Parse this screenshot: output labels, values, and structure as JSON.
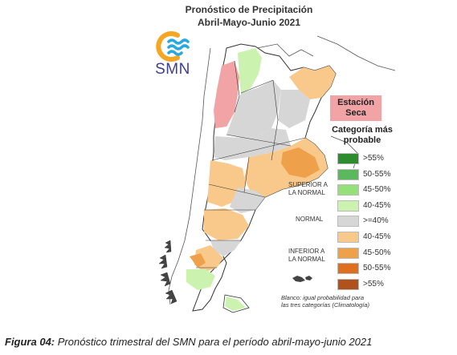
{
  "title": {
    "line1": "Pronóstico de Precipitación",
    "line2": "Abril-Mayo-Junio 2021"
  },
  "logo": {
    "text": "SMN",
    "icon": "smn-sun-waves-logo",
    "colors": {
      "sun": "#f5a623",
      "waves": "#2aa8e0"
    }
  },
  "dry_station": {
    "line1": "Estación",
    "line2": "Seca",
    "color": "#f1a3a6"
  },
  "legend": {
    "title_line1": "Categoría más",
    "title_line2": "probable",
    "items": [
      {
        "label": ">55%",
        "color": "#2e8b2e",
        "group": "superior"
      },
      {
        "label": "50-55%",
        "color": "#5cb85c",
        "group": "superior"
      },
      {
        "label": "45-50%",
        "color": "#96e07a",
        "group": "superior"
      },
      {
        "label": "40-45%",
        "color": "#ccf2b0",
        "group": "superior"
      },
      {
        "label": ">=40%",
        "color": "#d6d6d6",
        "group": "normal"
      },
      {
        "label": "40-45%",
        "color": "#f8c98a",
        "group": "inferior"
      },
      {
        "label": "45-50%",
        "color": "#eea14a",
        "group": "inferior"
      },
      {
        "label": "50-55%",
        "color": "#dd6f1f",
        "group": "inferior"
      },
      {
        "label": ">55%",
        "color": "#b0521c",
        "group": "inferior"
      }
    ],
    "groups": {
      "superior": {
        "line1": "SUPERIOR A",
        "line2": "LA NORMAL"
      },
      "normal": {
        "line1": "NORMAL"
      },
      "inferior": {
        "line1": "INFERIOR A",
        "line2": "LA NORMAL"
      }
    }
  },
  "note": {
    "line1": "Blanco: igual probabilidad para",
    "line2": "las tres categorías (Climatología)"
  },
  "caption": {
    "label": "Figura 04:",
    "text": " Pronóstico trimestral del SMN para el período abril-mayo-junio 2021"
  },
  "map_colors": {
    "land": "#ffffff",
    "border": "#333333",
    "neighbor": "#444444"
  }
}
